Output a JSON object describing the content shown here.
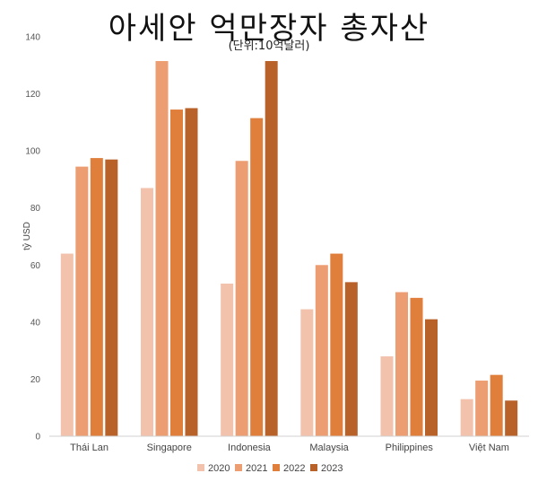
{
  "chart_data": {
    "type": "bar",
    "title": "아세안 억만장자 총자산",
    "subtitle": "(단위:10억달러)",
    "ylabel": "tỷ USD",
    "xlabel": "",
    "ylim": [
      0,
      140
    ],
    "yticks": [
      "0",
      "20",
      "40",
      "60",
      "80",
      "100",
      "120",
      "140"
    ],
    "grid": false,
    "legend_position": "bottom",
    "categories": [
      "Thái Lan",
      "Singapore",
      "Indonesia",
      "Malaysia",
      "Philippines",
      "Việt Nam"
    ],
    "series": [
      {
        "name": "2020",
        "color": "#F2C2AD",
        "values": [
          64,
          87,
          53.5,
          44.5,
          28,
          13
        ]
      },
      {
        "name": "2021",
        "color": "#EC9E72",
        "values": [
          94.5,
          131.5,
          96.5,
          60,
          50.5,
          19.5
        ]
      },
      {
        "name": "2022",
        "color": "#E07E3C",
        "values": [
          97.5,
          114.5,
          111.5,
          64,
          48.5,
          21.5
        ]
      },
      {
        "name": "2023",
        "color": "#B8622A",
        "values": [
          97,
          115,
          131.5,
          54,
          41,
          12.5
        ]
      }
    ]
  }
}
